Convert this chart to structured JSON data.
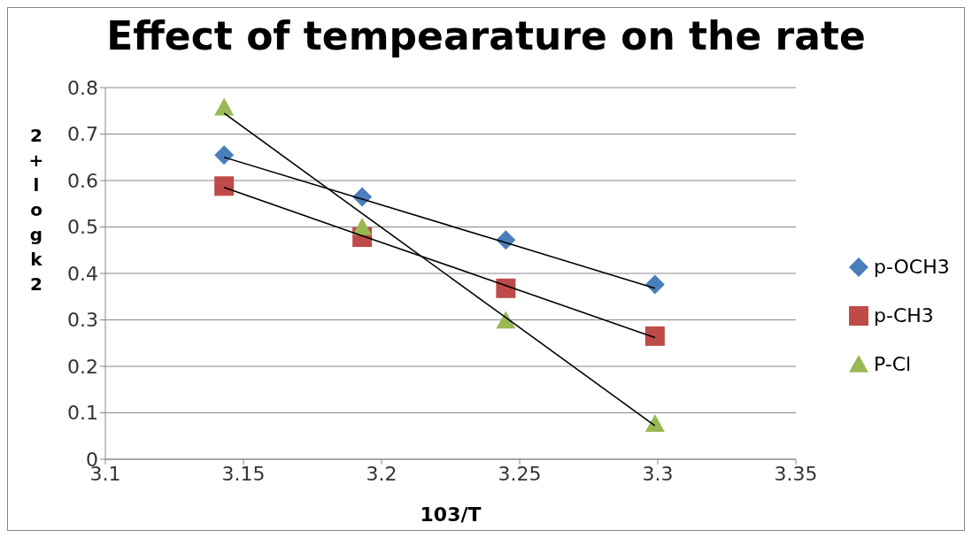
{
  "chart_data": {
    "type": "scatter",
    "title": "Effect of tempearature on the rate",
    "xlabel": "103/T",
    "ylabel": "2+logk2",
    "x": [
      3.143,
      3.193,
      3.245,
      3.299
    ],
    "series": [
      {
        "name": "p-OCH3",
        "color": "#4a7ebb",
        "marker": "diamond",
        "values": [
          0.655,
          0.565,
          0.472,
          0.376
        ]
      },
      {
        "name": "p-CH3",
        "color": "#be4b48",
        "marker": "square",
        "values": [
          0.588,
          0.478,
          0.368,
          0.265
        ]
      },
      {
        "name": "P-Cl",
        "color": "#98b954",
        "marker": "triangle",
        "values": [
          0.757,
          0.499,
          0.298,
          0.076
        ]
      },
      {
        "type": "line",
        "color": "#000000",
        "marker": "none",
        "values": [
          0.65,
          0.56,
          0.466,
          0.368
        ]
      },
      {
        "type": "line",
        "color": "#000000",
        "marker": "none",
        "values": [
          0.585,
          0.481,
          0.374,
          0.262
        ]
      },
      {
        "type": "line",
        "color": "#000000",
        "marker": "none",
        "values": [
          0.745,
          0.529,
          0.305,
          0.072
        ]
      }
    ],
    "xlim": [
      3.1,
      3.35
    ],
    "xticks": [
      3.1,
      3.15,
      3.2,
      3.25,
      3.3,
      3.35
    ],
    "ylim": [
      0,
      0.8
    ],
    "yticks": [
      0,
      0.1,
      0.2,
      0.3,
      0.4,
      0.5,
      0.6,
      0.7,
      0.8
    ],
    "grid": "y",
    "legend": "right"
  }
}
